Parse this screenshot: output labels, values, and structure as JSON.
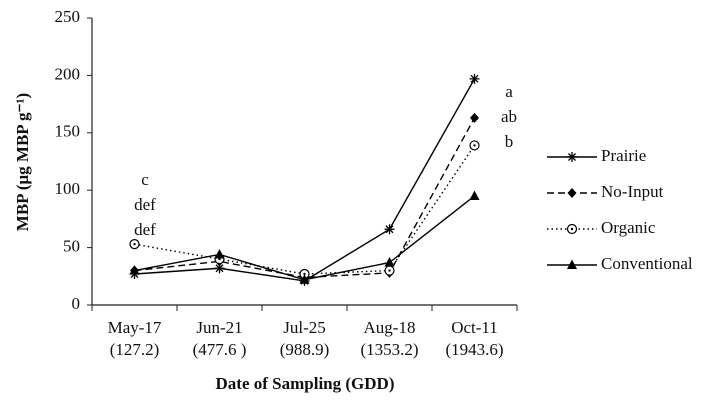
{
  "chart_data": {
    "type": "line",
    "y_label": "MBP (μg MBP g⁻¹)",
    "x_label": "Date of Sampling (GDD)",
    "categories": [
      "May-17",
      "Jun-21",
      "Jul-25",
      "Aug-18",
      "Oct-11"
    ],
    "category_sublabels": [
      "(127.2)",
      "(477.6 )",
      "(988.9)",
      "(1353.2)",
      "(1943.6)"
    ],
    "ylim": [
      0,
      250
    ],
    "yticks": [
      0,
      50,
      100,
      150,
      200,
      250
    ],
    "grid": false,
    "legend": "right",
    "series": [
      {
        "name": "Prairie",
        "color": "#000000",
        "marker": "asterisk",
        "dash": "solid",
        "values": [
          27,
          32,
          21,
          66,
          197
        ]
      },
      {
        "name": "No-Input",
        "color": "#000000",
        "marker": "diamond",
        "dash": "dashed",
        "values": [
          30,
          38,
          24,
          28,
          163
        ]
      },
      {
        "name": "Organic",
        "color": "#000000",
        "marker": "circle",
        "dash": "dotted",
        "values": [
          53,
          40,
          27,
          30,
          139
        ]
      },
      {
        "name": "Conventional",
        "color": "#000000",
        "marker": "triangle",
        "dash": "solid",
        "values": [
          30,
          44,
          22,
          37,
          95
        ]
      }
    ],
    "annotations": [
      {
        "category": 0,
        "lines": [
          "c",
          "def",
          "def"
        ]
      },
      {
        "category": 4,
        "lines": [
          "a",
          "ab",
          "b"
        ]
      }
    ]
  }
}
